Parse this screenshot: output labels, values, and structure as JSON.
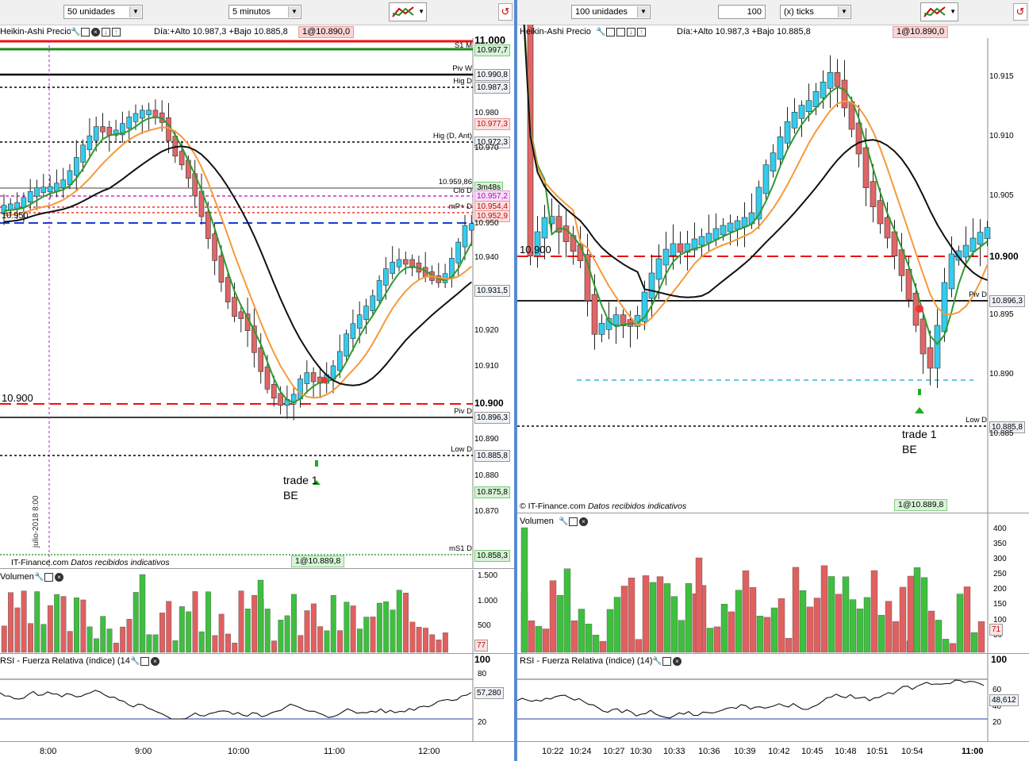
{
  "left": {
    "toolbar": {
      "units": "50 unidades",
      "interval": "5 minutos"
    },
    "title": "Heikin-Ashi Precio",
    "range_text": "Día:+Alto 10.987,3 +Bajo 10.885,8",
    "position_badge": "1@10.890,0",
    "price_labels": [
      {
        "text": "11.000",
        "y": 52,
        "kind": "big"
      },
      {
        "text": "10.997,7",
        "y": 63,
        "kind": "green"
      },
      {
        "text": "10.990,8",
        "y": 94,
        "kind": "box"
      },
      {
        "text": "10.987,3",
        "y": 110,
        "kind": "box"
      },
      {
        "text": "10.980",
        "y": 144,
        "kind": "plain"
      },
      {
        "text": "10.977,3",
        "y": 156,
        "kind": "red"
      },
      {
        "text": "10.972,3",
        "y": 179,
        "kind": "box"
      },
      {
        "text": "10.970",
        "y": 188,
        "kind": "plain"
      },
      {
        "text": "3m48s",
        "y": 236,
        "kind": "green"
      },
      {
        "text": "10.957,2",
        "y": 247,
        "kind": "mag"
      },
      {
        "text": "10.954,4",
        "y": 260,
        "kind": "red"
      },
      {
        "text": "10.952,9",
        "y": 272,
        "kind": "red"
      },
      {
        "text": "10.950",
        "y": 283,
        "kind": "plain"
      },
      {
        "text": "10.940",
        "y": 326,
        "kind": "plain"
      },
      {
        "text": "10.931,5",
        "y": 366,
        "kind": "box"
      },
      {
        "text": "10.920",
        "y": 418,
        "kind": "plain"
      },
      {
        "text": "10.910",
        "y": 463,
        "kind": "plain"
      },
      {
        "text": "10.900",
        "y": 508,
        "kind": "bold"
      },
      {
        "text": "10.896,3",
        "y": 526,
        "kind": "box"
      },
      {
        "text": "10.890",
        "y": 555,
        "kind": "plain"
      },
      {
        "text": "10.885,8",
        "y": 574,
        "kind": "box"
      },
      {
        "text": "10.880",
        "y": 601,
        "kind": "plain"
      },
      {
        "text": "10.875,8",
        "y": 620,
        "kind": "green"
      },
      {
        "text": "10.870",
        "y": 646,
        "kind": "plain"
      },
      {
        "text": "10.858,3",
        "y": 700,
        "kind": "green"
      }
    ],
    "line_labels": [
      {
        "text": "S1 M",
        "y": 58
      },
      {
        "text": "Piv W",
        "y": 87
      },
      {
        "text": "Hig D",
        "y": 103
      },
      {
        "text": "Hig (D, Ant)",
        "y": 172
      },
      {
        "text": "10.959,86",
        "y": 230
      },
      {
        "text": "Clo D",
        "y": 241
      },
      {
        "text": "mP+ D",
        "y": 261
      },
      {
        "text": "Piv D",
        "y": 519
      },
      {
        "text": "Low D",
        "y": 567
      },
      {
        "text": "mS1 D",
        "y": 692
      }
    ],
    "price_left_labels": [
      "10.950",
      "10.900"
    ],
    "trade_text": [
      "trade 1",
      "BE"
    ],
    "footer_text": "IT-Finance.com",
    "footer_status": "Datos recibidos indicativos",
    "footer_badge": "1@10.889,8",
    "date_vertical": "julio-2018 8:00",
    "volume": {
      "title": "Volumen",
      "axis": [
        "1.500",
        "1.000",
        "500"
      ],
      "last": "77"
    },
    "rsi": {
      "title": "RSI - Fuerza Relativa (índice) (14)",
      "axis": [
        "100",
        "80",
        "20"
      ],
      "last": "57,280"
    },
    "times": [
      "8:00",
      "9:00",
      "10:00",
      "11:00",
      "12:00"
    ]
  },
  "right": {
    "toolbar": {
      "units": "100 unidades",
      "qty": "100",
      "ticks": "(x) ticks"
    },
    "title": "Heikin-Ashi Precio",
    "range_text": "Día:+Alto 10.987,3 +Bajo 10.885,8",
    "position_badge": "1@10.890,0",
    "price_labels": [
      {
        "text": "10.915",
        "y": 98,
        "kind": "plain"
      },
      {
        "text": "10.910",
        "y": 173,
        "kind": "plain"
      },
      {
        "text": "10.905",
        "y": 248,
        "kind": "plain"
      },
      {
        "text": "10.900",
        "y": 323,
        "kind": "bold"
      },
      {
        "text": "10.896,3",
        "y": 379,
        "kind": "box"
      },
      {
        "text": "10.895",
        "y": 398,
        "kind": "plain"
      },
      {
        "text": "10.890",
        "y": 473,
        "kind": "plain"
      },
      {
        "text": "10.885,8",
        "y": 538,
        "kind": "box"
      },
      {
        "text": "10.885",
        "y": 548,
        "kind": "plain"
      }
    ],
    "line_labels": [
      {
        "text": "Piv D",
        "y": 372
      },
      {
        "text": "Low D",
        "y": 530
      }
    ],
    "price_left_label": "10.900",
    "trade_text": [
      "trade 1",
      "BE"
    ],
    "footer_text": "© IT-Finance.com",
    "footer_status": "Datos recibidos indicativos",
    "footer_badge": "1@10.889,8",
    "volume": {
      "title": "Volumen",
      "axis": [
        "400",
        "350",
        "300",
        "250",
        "200",
        "150",
        "100",
        "50"
      ],
      "last": "71"
    },
    "rsi": {
      "title": "RSI - Fuerza Relativa (índice) (14)",
      "axis": [
        "100",
        "60",
        "40",
        "20"
      ],
      "last": "48,612"
    },
    "times": [
      "10:22",
      "10:24",
      "10:27",
      "10:30",
      "10:33",
      "10:36",
      "10:39",
      "10:42",
      "10:45",
      "10:48",
      "10:51",
      "10:54",
      "11:00"
    ]
  },
  "colors": {
    "up": "#33ccee",
    "down": "#e06666",
    "green": "#2e9a2e",
    "orange": "#f59a3a",
    "vol_up": "#3fbf3f",
    "vol_down": "#e06060"
  }
}
